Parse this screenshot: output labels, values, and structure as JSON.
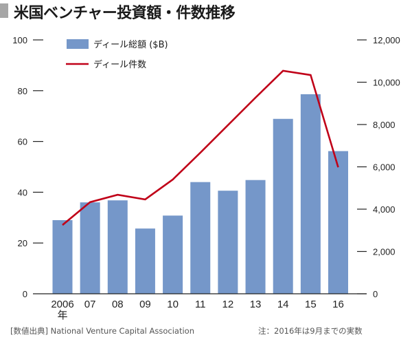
{
  "chart_data": {
    "type": "bar",
    "title": "米国ベンチャー投資額・件数推移",
    "categories": [
      "2006",
      "07",
      "08",
      "09",
      "10",
      "11",
      "12",
      "13",
      "14",
      "15",
      "16"
    ],
    "x_unit_label": "年",
    "series": [
      {
        "name": "ディール総額 ($B)",
        "type": "bar",
        "axis": "left",
        "color": "#7597c9",
        "values": [
          29,
          36,
          36.8,
          25.7,
          30.8,
          44,
          40.6,
          44.8,
          68.9,
          78.6,
          56.2
        ]
      },
      {
        "name": "ディール件数",
        "type": "line",
        "axis": "right",
        "color": "#c00018",
        "values": [
          3250,
          4330,
          4680,
          4460,
          5400,
          6670,
          7970,
          9270,
          10540,
          10340,
          5980
        ]
      }
    ],
    "left_axis": {
      "ylim": [
        0,
        100
      ],
      "ticks": [
        0,
        20,
        40,
        60,
        80,
        100
      ],
      "tick_labels": [
        "0",
        "20",
        "40",
        "60",
        "80",
        "100"
      ]
    },
    "right_axis": {
      "ylim": [
        0,
        12000
      ],
      "ticks": [
        0,
        2000,
        4000,
        6000,
        8000,
        10000,
        12000
      ],
      "tick_labels": [
        "0",
        "2,000",
        "4,000",
        "6,000",
        "8,000",
        "10,000",
        "12,000"
      ]
    },
    "legend": {
      "placement": "top-left",
      "entries": [
        "ディール総額 ($B)",
        "ディール件数"
      ]
    },
    "grid": false,
    "source": "[数値出典] National Venture Capital Association",
    "note": "注：2016年は9月までの実数"
  }
}
